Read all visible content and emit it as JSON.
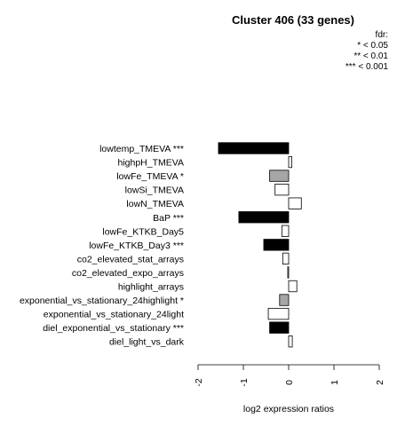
{
  "chart_data": {
    "type": "bar",
    "orientation": "horizontal",
    "title": "Cluster 406 (33 genes)",
    "legend": {
      "title": "fdr:",
      "entries": [
        "* < 0.05",
        "** < 0.01",
        "*** < 0.001"
      ],
      "placement": "top-right"
    },
    "xlabel": "log2 expression ratios",
    "xlim": [
      -2,
      2
    ],
    "xticks": [
      "-2",
      "-1",
      "0",
      "1",
      "2"
    ],
    "categories": [
      "lowtemp_TMEVA ***",
      "highpH_TMEVA",
      "lowFe_TMEVA *",
      "lowSi_TMEVA",
      "lowN_TMEVA",
      "BaP ***",
      "lowFe_KTKB_Day5",
      "lowFe_KTKB_Day3 ***",
      "co2_elevated_stat_arrays",
      "co2_elevated_expo_arrays",
      "highlight_arrays",
      "exponential_vs_stationary_24highlight *",
      "exponential_vs_stationary_24light",
      "diel_exponential_vs_stationary ***",
      "diel_light_vs_dark"
    ],
    "values": [
      -1.55,
      0.07,
      -0.42,
      -0.3,
      0.28,
      -1.1,
      -0.15,
      -0.55,
      -0.13,
      -0.02,
      0.18,
      -0.2,
      -0.45,
      -0.42,
      0.08
    ],
    "significance": [
      "***",
      "",
      "*",
      "",
      "",
      "***",
      "",
      "***",
      "",
      "",
      "",
      "*",
      "",
      "***",
      ""
    ],
    "colors": {
      "***": "#000000",
      "*": "#a6a6a6",
      "": "#ffffff",
      "stroke": "#000000"
    },
    "grid": false
  }
}
